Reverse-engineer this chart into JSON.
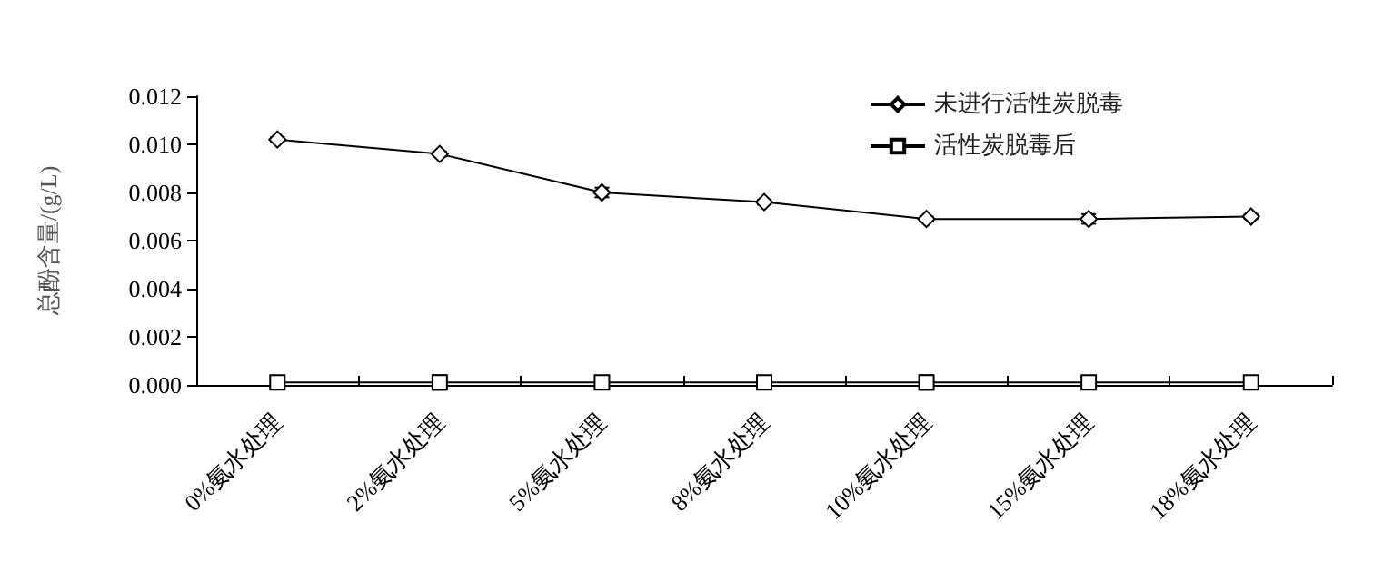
{
  "chart_data": {
    "type": "line",
    "ylabel": "总酚含量/(g/L)",
    "categories": [
      "0%氨水处理",
      "2%氨水处理",
      "5%氨水处理",
      "8%氨水处理",
      "10%氨水处理",
      "15%氨水处理",
      "18%氨水处理"
    ],
    "series": [
      {
        "name": "未进行活性炭脱毒",
        "color": "#000000",
        "marker": "diamond",
        "values": [
          0.0102,
          0.0096,
          0.008,
          0.0076,
          0.0069,
          0.0069,
          0.007
        ],
        "errors": [
          0.0001,
          0.0001,
          0.0002,
          0.0001,
          0.0001,
          0.0002,
          0.0001
        ]
      },
      {
        "name": "活性炭脱毒后",
        "color": "#000000",
        "marker": "square",
        "values": [
          0.0001,
          0.0001,
          0.0001,
          0.0001,
          0.0001,
          0.0001,
          0.0001
        ],
        "errors": [
          0.0001,
          0.0003,
          0.0001,
          0.0001,
          0.0003,
          0.0001,
          0.0001
        ]
      }
    ],
    "ylim": [
      0,
      0.012
    ],
    "yticks": [
      {
        "value": 0,
        "label": "0.000"
      },
      {
        "value": 0.002,
        "label": "0.002"
      },
      {
        "value": 0.004,
        "label": "0.004"
      },
      {
        "value": 0.006,
        "label": "0.006"
      },
      {
        "value": 0.008,
        "label": "0.008"
      },
      {
        "value": 0.01,
        "label": "0.010"
      },
      {
        "value": 0.012,
        "label": "0.012"
      }
    ],
    "grid": false,
    "legend": "top right",
    "line_style": "solid"
  }
}
